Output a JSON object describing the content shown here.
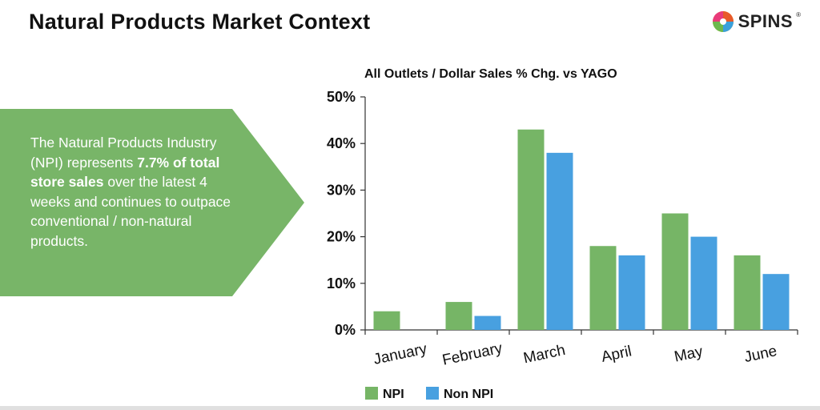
{
  "header": {
    "title": "Natural Products Market Context",
    "logo_text": "SPINS",
    "logo_reg": "®"
  },
  "callout": {
    "text_before": "The Natural Products Industry (NPI) represents ",
    "text_bold": "7.7% of total store sales",
    "text_after": " over the latest 4 weeks and continues to outpace conventional / non-natural products."
  },
  "colors": {
    "npi": "#76b566",
    "non_npi": "#48a0e0",
    "panel": "#78b568",
    "axis": "#333333"
  },
  "chart_data": {
    "type": "bar",
    "title": "All Outlets / Dollar Sales % Chg. vs YAGO",
    "categories": [
      "January",
      "February",
      "March",
      "April",
      "May",
      "June"
    ],
    "series": [
      {
        "name": "NPI",
        "values": [
          4,
          6,
          43,
          18,
          25,
          16
        ]
      },
      {
        "name": "Non NPI",
        "values": [
          null,
          3,
          38,
          16,
          20,
          12
        ]
      }
    ],
    "ylim": [
      0,
      50
    ],
    "yticks": [
      "0%",
      "10%",
      "20%",
      "30%",
      "40%",
      "50%"
    ],
    "ytick_values": [
      0,
      10,
      20,
      30,
      40,
      50
    ],
    "grid": false,
    "legend_position": "bottom-left"
  }
}
